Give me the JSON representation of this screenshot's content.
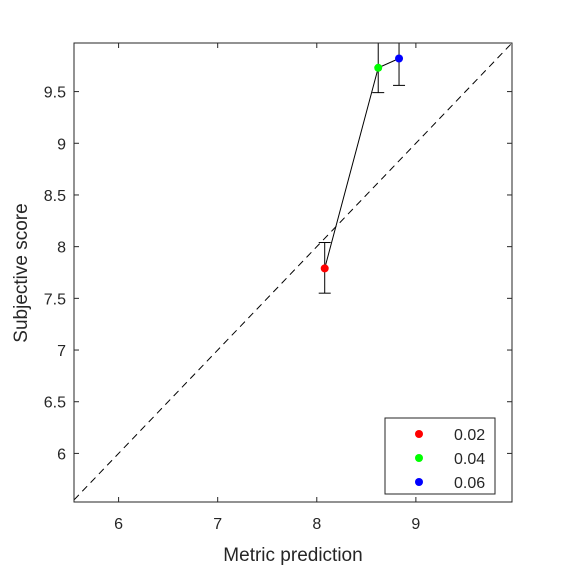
{
  "chart_data": {
    "type": "scatter",
    "title": "",
    "xlabel": "Metric prediction",
    "ylabel": "Subjective score",
    "xlim": [
      5.55,
      9.97
    ],
    "ylim": [
      5.53,
      9.97
    ],
    "x_ticks": [
      6,
      7,
      8,
      9
    ],
    "y_ticks": [
      6,
      6.5,
      7,
      7.5,
      8,
      8.5,
      9,
      9.5
    ],
    "x_tick_labels": [
      "6",
      "7",
      "8",
      "9"
    ],
    "y_tick_labels": [
      "6",
      "6.5",
      "7",
      "7.5",
      "8",
      "8.5",
      "9",
      "9.5"
    ],
    "grid": false,
    "legend_position": "bottom-right",
    "diagonal_reference": true,
    "series": [
      {
        "name": "0.02",
        "color": "#ff0000",
        "x": 8.08,
        "y": 7.79,
        "err_low": 7.55,
        "err_high": 8.04
      },
      {
        "name": "0.04",
        "color": "#00ff00",
        "x": 8.62,
        "y": 9.73,
        "err_low": 9.49,
        "err_high": 9.97
      },
      {
        "name": "0.06",
        "color": "#0000ff",
        "x": 8.83,
        "y": 9.82,
        "err_low": 9.56,
        "err_high": 9.97
      }
    ]
  }
}
